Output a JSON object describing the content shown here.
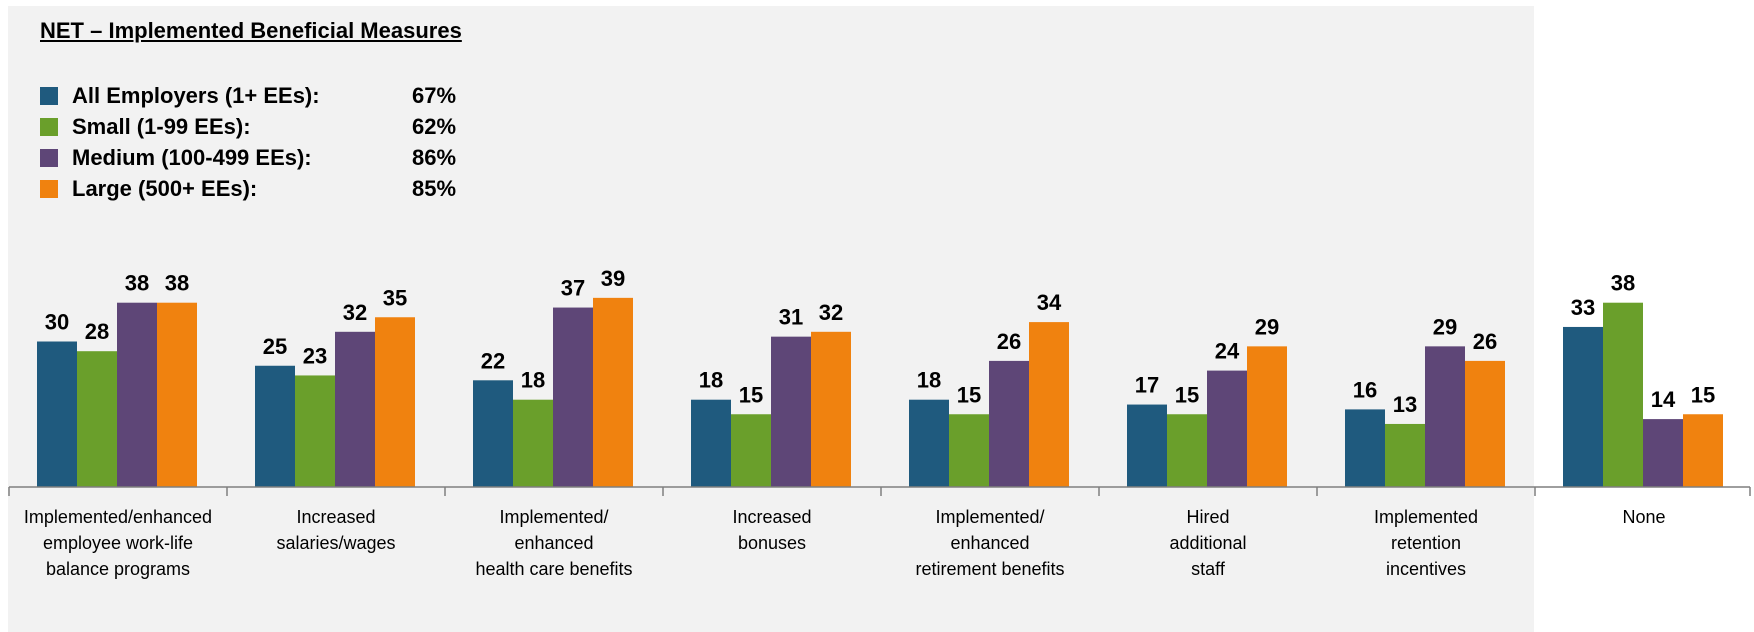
{
  "net_box": {
    "title": "NET – Implemented Beneficial Measures",
    "legend": [
      {
        "label": "All Employers (1+ EEs):",
        "value": "67%",
        "color": "#1f5a7e"
      },
      {
        "label": "Small (1-99 EEs):",
        "value": "62%",
        "color": "#6a9f2b"
      },
      {
        "label": "Medium (100-499 EEs):",
        "value": "86%",
        "color": "#5e4677"
      },
      {
        "label": "Large (500+ EEs):",
        "value": "85%",
        "color": "#f0820f"
      }
    ]
  },
  "chart_data": {
    "type": "bar",
    "categories": [
      [
        "Implemented/enhanced",
        "employee work-life",
        "balance programs"
      ],
      [
        "Increased",
        "salaries/wages"
      ],
      [
        "Implemented/",
        "enhanced",
        "health care benefits"
      ],
      [
        "Increased",
        "bonuses"
      ],
      [
        "Implemented/",
        "enhanced",
        "retirement benefits"
      ],
      [
        "Hired",
        "additional",
        "staff"
      ],
      [
        "Implemented",
        "retention",
        "incentives"
      ],
      [
        "None"
      ]
    ],
    "series": [
      {
        "name": "All Employers (1+ EEs)",
        "color": "#1f5a7e",
        "values": [
          30,
          25,
          22,
          18,
          18,
          17,
          16,
          33
        ]
      },
      {
        "name": "Small (1-99 EEs)",
        "color": "#6a9f2b",
        "values": [
          28,
          23,
          18,
          15,
          15,
          15,
          13,
          38
        ]
      },
      {
        "name": "Medium (100-499 EEs)",
        "color": "#5e4677",
        "values": [
          38,
          32,
          37,
          31,
          26,
          24,
          29,
          14
        ]
      },
      {
        "name": "Large (500+ EEs)",
        "color": "#f0820f",
        "values": [
          38,
          35,
          39,
          32,
          34,
          29,
          26,
          15
        ]
      }
    ],
    "ylim": [
      0,
      40
    ],
    "grid": false,
    "data_labels": true
  }
}
